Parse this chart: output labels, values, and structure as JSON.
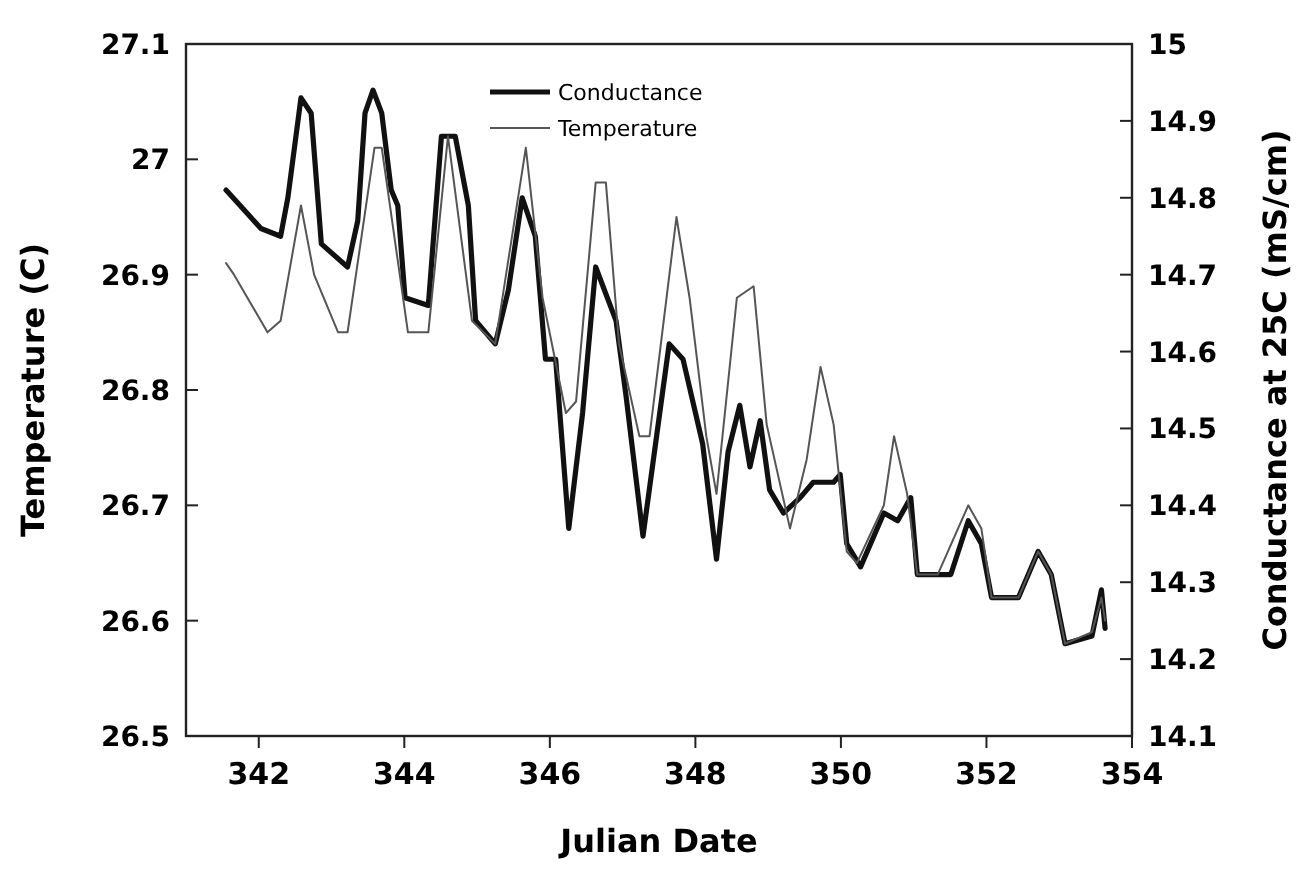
{
  "chart_data": {
    "type": "line",
    "xlabel": "Julian Date",
    "ylabel": "Temperature (C)",
    "y2label": "Conductance at 25C (mS/cm)",
    "xlim": [
      341,
      354
    ],
    "xticks": [
      342,
      344,
      346,
      348,
      350,
      352,
      354
    ],
    "ylim": [
      26.5,
      27.1
    ],
    "yticks": [
      26.5,
      26.6,
      26.7,
      26.8,
      26.9,
      27,
      27.1
    ],
    "y2lim": [
      14.1,
      15
    ],
    "y2ticks": [
      14.1,
      14.2,
      14.3,
      14.4,
      14.5,
      14.6,
      14.7,
      14.8,
      14.9,
      15
    ],
    "grid": false,
    "legend": "top",
    "marker": "none",
    "line_style": "solid",
    "series": [
      {
        "name": "Conductance",
        "color": "#111111",
        "axis": "y2",
        "x": [
          341.55,
          341.84,
          342.03,
          342.3,
          342.4,
          342.58,
          342.72,
          342.86,
          343.22,
          343.36,
          343.46,
          343.57,
          343.69,
          343.82,
          343.91,
          344.01,
          344.33,
          344.51,
          344.7,
          344.88,
          344.98,
          345.25,
          345.43,
          345.62,
          345.8,
          345.94,
          346.08,
          346.26,
          346.45,
          346.63,
          346.91,
          347.05,
          347.28,
          347.51,
          347.64,
          347.83,
          348.1,
          348.29,
          348.45,
          348.61,
          348.75,
          348.89,
          349.02,
          349.21,
          349.44,
          349.62,
          349.9,
          349.99,
          350.08,
          350.27,
          350.59,
          350.78,
          350.96,
          351.05,
          351.51,
          351.75,
          351.93,
          352.07,
          352.44,
          352.71,
          352.89,
          353.08,
          353.45,
          353.58,
          353.63
        ],
        "values": [
          14.81,
          14.78,
          14.76,
          14.75,
          14.8,
          14.93,
          14.91,
          14.74,
          14.71,
          14.77,
          14.91,
          14.94,
          14.91,
          14.81,
          14.79,
          14.67,
          14.66,
          14.88,
          14.88,
          14.79,
          14.64,
          14.61,
          14.68,
          14.8,
          14.75,
          14.59,
          14.59,
          14.37,
          14.52,
          14.71,
          14.64,
          14.54,
          14.36,
          14.52,
          14.61,
          14.59,
          14.48,
          14.33,
          14.47,
          14.53,
          14.45,
          14.51,
          14.42,
          14.39,
          14.41,
          14.43,
          14.43,
          14.44,
          14.35,
          14.32,
          14.39,
          14.38,
          14.41,
          14.31,
          14.31,
          14.38,
          14.35,
          14.28,
          14.28,
          14.34,
          14.31,
          14.22,
          14.23,
          14.29,
          14.24
        ]
      },
      {
        "name": "Temperature",
        "color": "#555555",
        "x": [
          341.55,
          341.66,
          342.12,
          342.3,
          342.58,
          342.76,
          343.09,
          343.22,
          343.59,
          343.69,
          344.05,
          344.33,
          344.6,
          344.93,
          345.25,
          345.67,
          345.9,
          346.22,
          346.36,
          346.63,
          346.77,
          346.95,
          347.23,
          347.37,
          347.74,
          347.92,
          348.15,
          348.29,
          348.57,
          348.8,
          348.98,
          349.3,
          349.53,
          349.72,
          349.9,
          350.08,
          350.22,
          350.59,
          350.73,
          350.91,
          351.05,
          351.33,
          351.75,
          351.93,
          352.07,
          352.44,
          352.71,
          352.89,
          353.08,
          353.45,
          353.58,
          353.63
        ],
        "values": [
          26.91,
          26.9,
          26.85,
          26.86,
          26.96,
          26.9,
          26.85,
          26.85,
          27.01,
          27.01,
          26.85,
          26.85,
          27.02,
          26.86,
          26.84,
          27.01,
          26.88,
          26.78,
          26.79,
          26.98,
          26.98,
          26.84,
          26.76,
          26.76,
          26.95,
          26.88,
          26.76,
          26.71,
          26.88,
          26.89,
          26.77,
          26.68,
          26.74,
          26.82,
          26.77,
          26.66,
          26.65,
          26.7,
          26.76,
          26.71,
          26.64,
          26.64,
          26.7,
          26.68,
          26.62,
          26.62,
          26.66,
          26.64,
          26.58,
          26.59,
          26.62,
          26.6
        ]
      }
    ]
  }
}
